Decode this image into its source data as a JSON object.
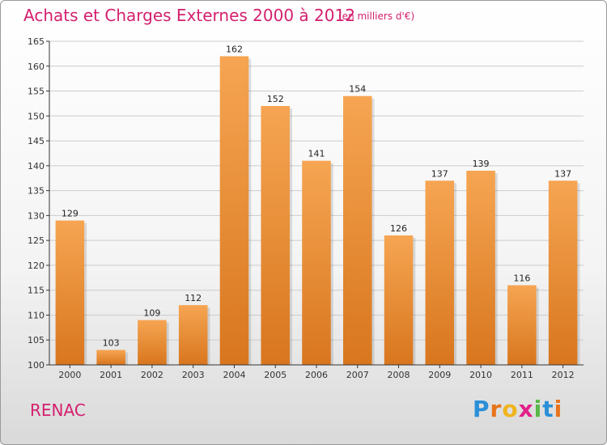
{
  "header": {
    "title": "Achats et Charges Externes 2000 à 2012",
    "subtitle": "(en milliers d'€)"
  },
  "footer": {
    "commune": "RENAC",
    "brand_letters": [
      "P",
      "r",
      "o",
      "x",
      "i",
      "t",
      "i"
    ],
    "brand_colors": [
      "#2a8fd8",
      "#e8731a",
      "#f0b51e",
      "#e2208a",
      "#57b847",
      "#2a8fd8",
      "#e8731a"
    ]
  },
  "colors": {
    "title": "#d4206e",
    "bar_light": "#f6a552",
    "bar_dark": "#d8761e",
    "grid": "#cccccc",
    "axis": "#333333"
  },
  "chart_data": {
    "type": "bar",
    "title": "Achats et Charges Externes 2000 à 2012",
    "subtitle": "(en milliers d'€)",
    "xlabel": "",
    "ylabel": "",
    "categories": [
      "2000",
      "2001",
      "2002",
      "2003",
      "2004",
      "2005",
      "2006",
      "2007",
      "2008",
      "2009",
      "2010",
      "2011",
      "2012"
    ],
    "values": [
      129,
      103,
      109,
      112,
      162,
      152,
      141,
      154,
      126,
      137,
      139,
      116,
      137
    ],
    "ylim": [
      100,
      165
    ],
    "yticks": [
      100,
      105,
      110,
      115,
      120,
      125,
      130,
      135,
      140,
      145,
      150,
      155,
      160,
      165
    ],
    "grid": true
  }
}
